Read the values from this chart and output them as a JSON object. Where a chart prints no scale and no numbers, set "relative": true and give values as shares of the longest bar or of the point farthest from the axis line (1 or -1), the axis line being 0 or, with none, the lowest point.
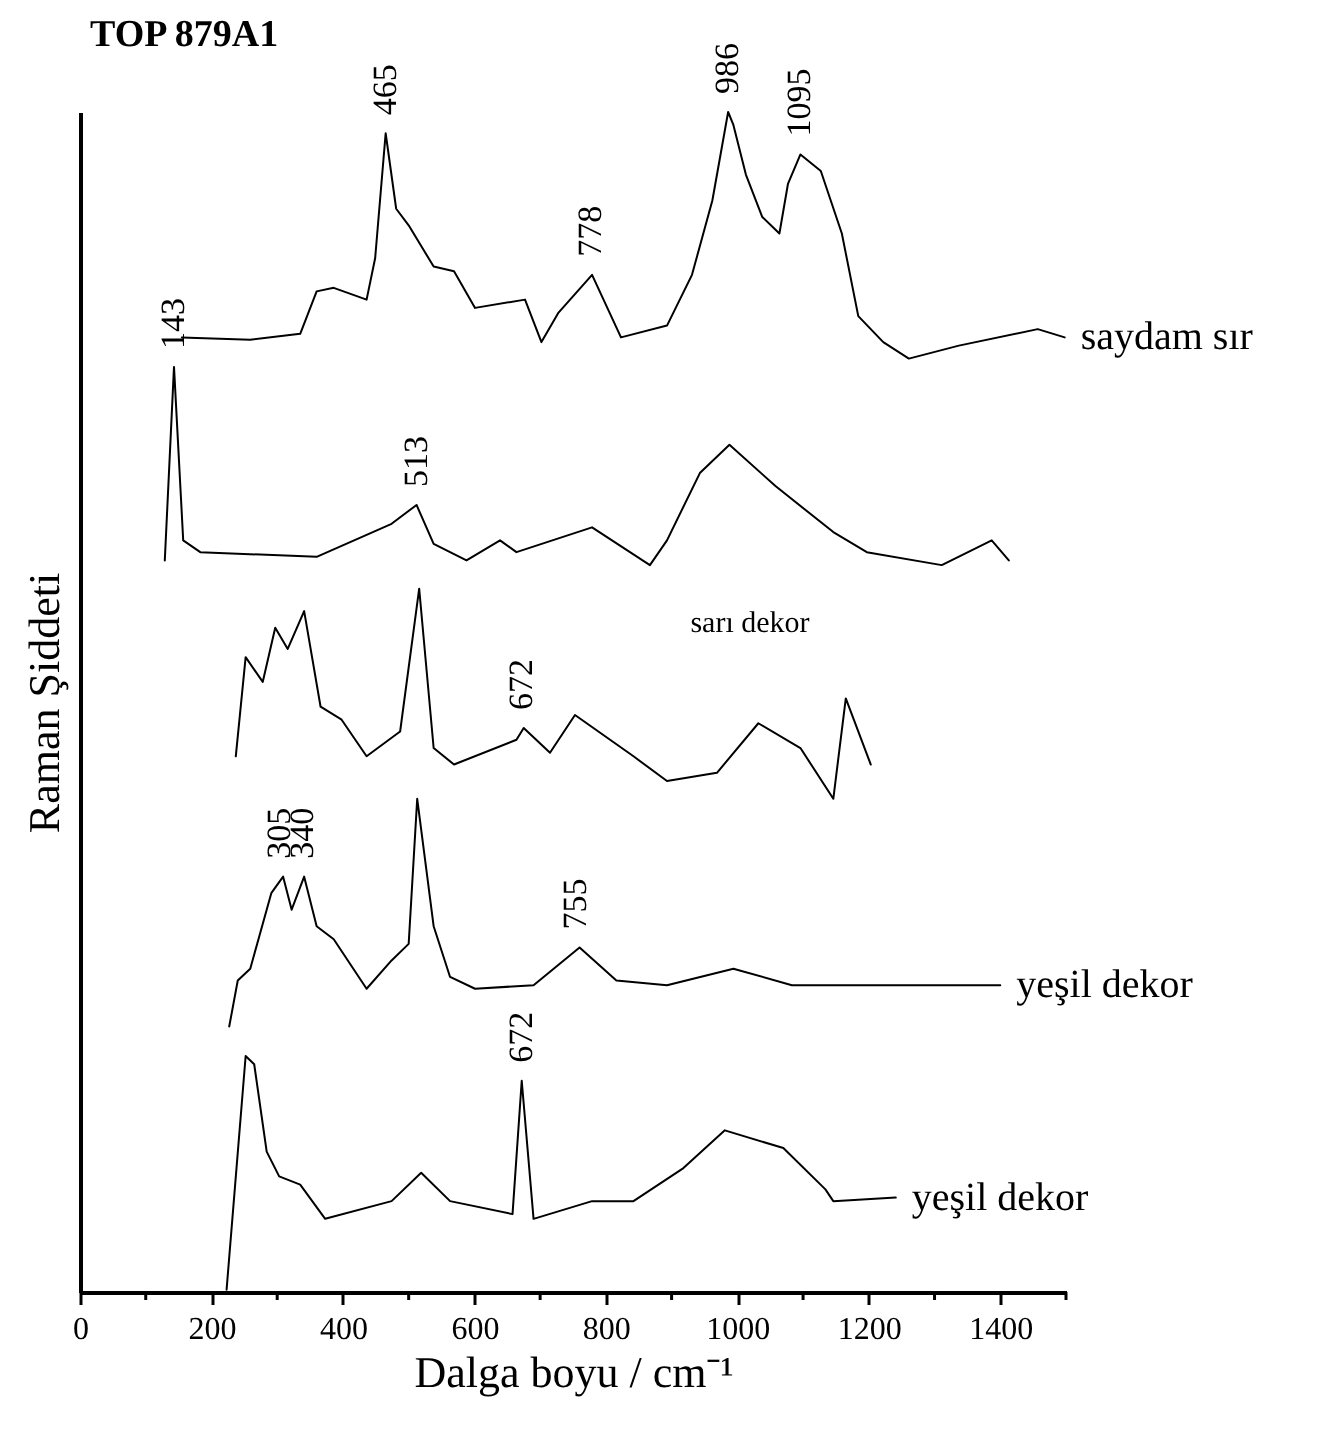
{
  "chart_data": {
    "type": "line",
    "title": "TOP 879A1",
    "xlabel": "Dalga boyu / cm⁻¹",
    "ylabel": "Raman Şiddeti",
    "relative": true,
    "xlim": [
      0,
      1500
    ],
    "xticks": [
      0,
      {
        "value": 100,
        "label": null
      },
      200,
      {
        "value": 300,
        "label": null
      },
      400,
      {
        "value": 500,
        "label": null
      },
      600,
      {
        "value": 700,
        "label": null
      },
      800,
      {
        "value": 900,
        "label": null
      },
      1000,
      {
        "value": 1100,
        "label": null
      },
      1200,
      {
        "value": 1300,
        "label": null
      },
      1400,
      {
        "value": 1500,
        "label": null
      }
    ],
    "grid": false,
    "legend": false,
    "marker": "none",
    "line_style": "solid",
    "series": [
      {
        "name": "saydam sır",
        "color": "#000000",
        "x": [
          155,
          259,
          335,
          360,
          386,
          436,
          449,
          465,
          481,
          500,
          538,
          569,
          601,
          677,
          702,
          728,
          779,
          823,
          893,
          931,
          962,
          986,
          994,
          1013,
          1038,
          1064,
          1077,
          1096,
          1127,
          1159,
          1184,
          1222,
          1261,
          1337,
          1457,
          1498
        ],
        "values": [
          0.809,
          0.807,
          0.812,
          0.848,
          0.851,
          0.841,
          0.876,
          0.982,
          0.918,
          0.904,
          0.869,
          0.865,
          0.834,
          0.841,
          0.805,
          0.83,
          0.862,
          0.809,
          0.819,
          0.862,
          0.925,
          1.0,
          0.989,
          0.947,
          0.911,
          0.897,
          0.939,
          0.964,
          0.95,
          0.897,
          0.827,
          0.805,
          0.791,
          0.802,
          0.816,
          0.809
        ]
      },
      {
        "color": "#000000",
        "x": [
          129,
          143,
          157,
          183,
          360,
          474,
          512,
          538,
          588,
          639,
          664,
          779,
          867,
          893,
          943,
          988,
          1058,
          1146,
          1197,
          1311,
          1387,
          1413
        ],
        "values": [
          0.62,
          0.784,
          0.637,
          0.627,
          0.623,
          0.651,
          0.667,
          0.634,
          0.62,
          0.637,
          0.627,
          0.648,
          0.616,
          0.637,
          0.694,
          0.718,
          0.683,
          0.644,
          0.627,
          0.616,
          0.637,
          0.62
        ]
      },
      {
        "color": "#000000",
        "x": [
          237,
          252,
          278,
          297,
          316,
          341,
          366,
          398,
          436,
          487,
          516,
          538,
          569,
          664,
          675,
          715,
          753,
          842,
          893,
          969,
          1032,
          1096,
          1146,
          1165,
          1203
        ],
        "values": [
          0.454,
          0.538,
          0.517,
          0.563,
          0.545,
          0.577,
          0.496,
          0.485,
          0.454,
          0.475,
          0.596,
          0.461,
          0.447,
          0.468,
          0.478,
          0.457,
          0.489,
          0.454,
          0.433,
          0.44,
          0.482,
          0.461,
          0.418,
          0.503,
          0.447
        ]
      },
      {
        "name": "yeşil dekor",
        "color": "#000000",
        "x": [
          227,
          240,
          259,
          291,
          309,
          322,
          341,
          360,
          386,
          436,
          474,
          500,
          513,
          538,
          563,
          601,
          690,
          760,
          816,
          893,
          994,
          1083,
          1400
        ],
        "values": [
          0.225,
          0.264,
          0.274,
          0.338,
          0.352,
          0.324,
          0.352,
          0.31,
          0.299,
          0.257,
          0.281,
          0.295,
          0.418,
          0.31,
          0.267,
          0.257,
          0.26,
          0.292,
          0.264,
          0.26,
          0.274,
          0.26,
          0.26
        ]
      },
      {
        "name": "yeşil dekor",
        "color": "#000000",
        "x": [
          223,
          252,
          265,
          284,
          303,
          335,
          373,
          474,
          519,
          563,
          658,
          672,
          690,
          779,
          842,
          918,
          981,
          1070,
          1134,
          1146,
          1241
        ],
        "values": [
          0.002,
          0.2,
          0.193,
          0.119,
          0.098,
          0.091,
          0.062,
          0.077,
          0.101,
          0.077,
          0.066,
          0.179,
          0.062,
          0.077,
          0.077,
          0.105,
          0.137,
          0.122,
          0.087,
          0.077,
          0.08
        ]
      }
    ],
    "annotations": [
      {
        "text": "465",
        "x": 465,
        "y": 0.982
      },
      {
        "text": "986",
        "x": 986,
        "y": 1.0
      },
      {
        "text": "1095",
        "x": 1095,
        "y": 0.964
      },
      {
        "text": "778",
        "x": 778,
        "y": 0.862
      },
      {
        "text": "143",
        "x": 143,
        "y": 0.784
      },
      {
        "text": "513",
        "x": 513,
        "y": 0.667
      },
      {
        "text": "672",
        "x": 672,
        "y": 0.478
      },
      {
        "text": "305",
        "x": 305,
        "y": 0.352
      },
      {
        "text": "340",
        "x": 340,
        "y": 0.352
      },
      {
        "text": "755",
        "x": 755,
        "y": 0.292
      },
      {
        "text": "672",
        "x": 672,
        "y": 0.179
      },
      "sarı dekor"
    ]
  }
}
